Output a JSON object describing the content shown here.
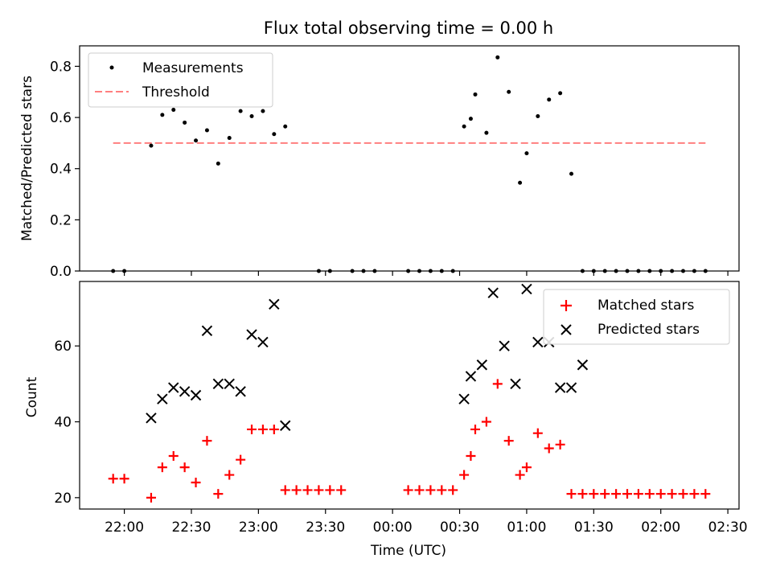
{
  "chart_data": [
    {
      "type": "scatter",
      "title": "Flux total observing time = 0.00 h",
      "xlabel": "",
      "ylabel": "Matched/Predicted stars",
      "xlim": [
        "21:40",
        "02:35"
      ],
      "ylim": [
        0,
        0.88
      ],
      "yticks": [
        0.0,
        0.2,
        0.4,
        0.6,
        0.8
      ],
      "ytick_labels": [
        "0.0",
        "0.2",
        "0.4",
        "0.6",
        "0.8"
      ],
      "grid": false,
      "legend_position": "upper-left",
      "series": [
        {
          "name": "Measurements",
          "marker": "dot",
          "color": "#000000",
          "x": [
            "21:55",
            "22:00",
            "22:12",
            "22:17",
            "22:22",
            "22:27",
            "22:32",
            "22:37",
            "22:42",
            "22:47",
            "22:52",
            "22:57",
            "23:02",
            "23:07",
            "23:12",
            "23:27",
            "23:32",
            "23:42",
            "23:47",
            "23:52",
            "00:07",
            "00:12",
            "00:17",
            "00:22",
            "00:27",
            "00:32",
            "00:35",
            "00:37",
            "00:42",
            "00:47",
            "00:52",
            "00:57",
            "01:00",
            "01:05",
            "01:10",
            "01:15",
            "01:20",
            "01:25",
            "01:30",
            "01:35",
            "01:40",
            "01:45",
            "01:50",
            "01:55",
            "02:00",
            "02:05",
            "02:10",
            "02:15",
            "02:20"
          ],
          "y": [
            0,
            0,
            0.49,
            0.61,
            0.63,
            0.58,
            0.51,
            0.55,
            0.42,
            0.52,
            0.625,
            0.605,
            0.625,
            0.535,
            0.565,
            0,
            0,
            0,
            0,
            0,
            0,
            0,
            0,
            0,
            0,
            0.565,
            0.595,
            0.69,
            0.54,
            0.835,
            0.7,
            0.345,
            0.46,
            0.605,
            0.67,
            0.695,
            0.38,
            0,
            0,
            0,
            0,
            0,
            0,
            0,
            0,
            0,
            0,
            0,
            0
          ]
        },
        {
          "name": "Threshold",
          "style": "dashed-line",
          "color": "#ff7f7f",
          "x": [
            "21:55",
            "02:20"
          ],
          "y": [
            0.5,
            0.5
          ]
        }
      ]
    },
    {
      "type": "scatter",
      "title": "",
      "xlabel": "Time (UTC)",
      "ylabel": "Count",
      "xlim": [
        "21:40",
        "02:35"
      ],
      "xticks": [
        "22:00",
        "22:30",
        "23:00",
        "23:30",
        "00:00",
        "00:30",
        "01:00",
        "01:30",
        "02:00",
        "02:30"
      ],
      "ylim": [
        17,
        77
      ],
      "yticks": [
        20,
        40,
        60
      ],
      "ytick_labels": [
        "20",
        "40",
        "60"
      ],
      "grid": false,
      "legend_position": "upper-right",
      "series": [
        {
          "name": "Matched stars",
          "marker": "plus",
          "color": "#ff0000",
          "x": [
            "21:55",
            "22:00",
            "22:12",
            "22:17",
            "22:22",
            "22:27",
            "22:32",
            "22:37",
            "22:42",
            "22:47",
            "22:52",
            "22:57",
            "23:02",
            "23:07",
            "23:12",
            "23:17",
            "23:22",
            "23:27",
            "23:32",
            "23:37",
            "00:07",
            "00:12",
            "00:17",
            "00:22",
            "00:27",
            "00:32",
            "00:35",
            "00:37",
            "00:42",
            "00:47",
            "00:52",
            "00:57",
            "01:00",
            "01:05",
            "01:10",
            "01:15",
            "01:20",
            "01:25",
            "01:30",
            "01:35",
            "01:40",
            "01:45",
            "01:50",
            "01:55",
            "02:00",
            "02:05",
            "02:10",
            "02:15",
            "02:20"
          ],
          "y": [
            25,
            25,
            20,
            28,
            31,
            28,
            24,
            35,
            21,
            26,
            30,
            38,
            38,
            38,
            22,
            22,
            22,
            22,
            22,
            22,
            22,
            22,
            22,
            22,
            22,
            26,
            31,
            38,
            40,
            50,
            35,
            26,
            28,
            37,
            33,
            34,
            21,
            21,
            21,
            21,
            21,
            21,
            21,
            21,
            21,
            21,
            21,
            21,
            21
          ]
        },
        {
          "name": "Predicted stars",
          "marker": "x",
          "color": "#000000",
          "x": [
            "22:12",
            "22:17",
            "22:22",
            "22:27",
            "22:32",
            "22:37",
            "22:42",
            "22:47",
            "22:52",
            "22:57",
            "23:02",
            "23:07",
            "23:12",
            "00:32",
            "00:35",
            "00:40",
            "00:45",
            "00:50",
            "00:55",
            "01:00",
            "01:05",
            "01:10",
            "01:15",
            "01:20",
            "01:25"
          ],
          "y": [
            41,
            46,
            49,
            48,
            47,
            64,
            50,
            50,
            48,
            63,
            61,
            71,
            39,
            46,
            52,
            55,
            74,
            60,
            50,
            75,
            61,
            61,
            49,
            49,
            55
          ]
        }
      ]
    }
  ]
}
